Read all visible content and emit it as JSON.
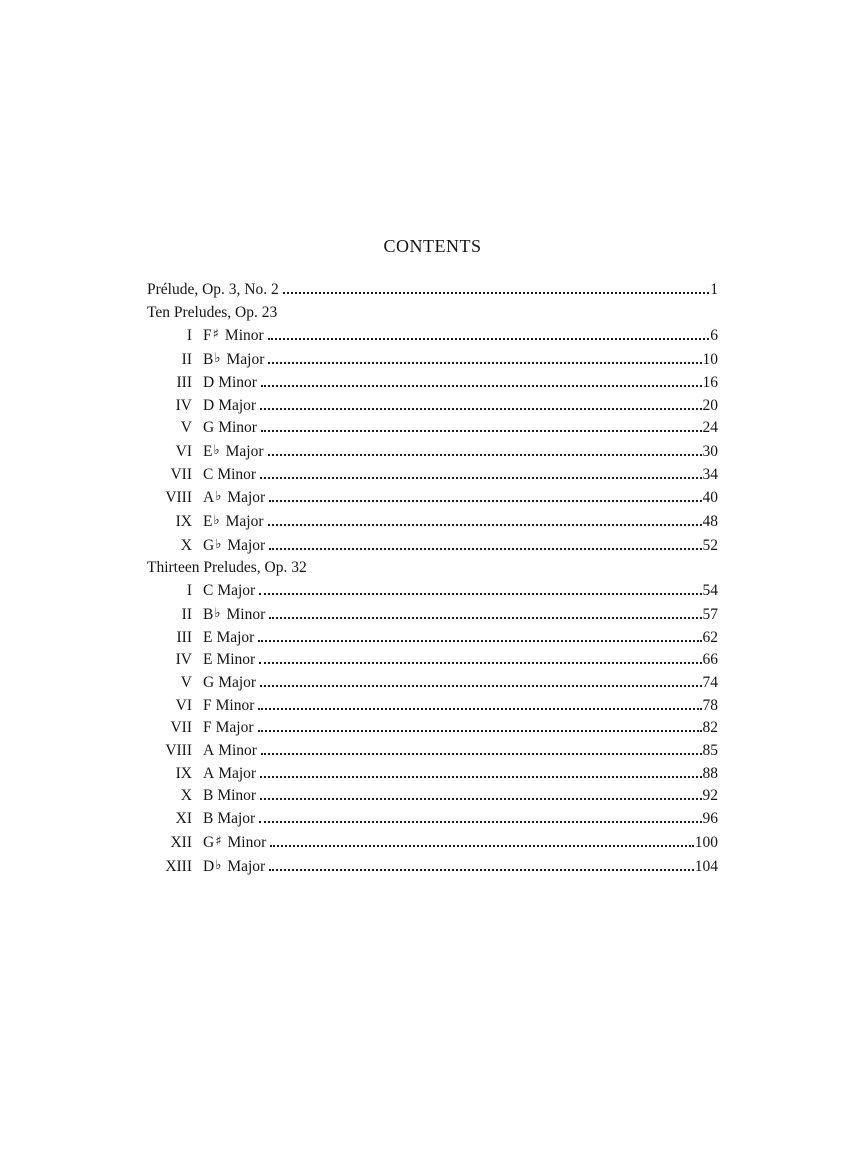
{
  "title": "CONTENTS",
  "entries": [
    {
      "type": "main",
      "label": "Prélude, Op. 3, No. 2",
      "page": "1"
    },
    {
      "type": "section",
      "label": "Ten Preludes, Op. 23"
    },
    {
      "type": "piece",
      "numeral": "I",
      "note": "F",
      "accidental": "♯",
      "quality": "Minor",
      "page": "6"
    },
    {
      "type": "piece",
      "numeral": "II",
      "note": "B",
      "accidental": "♭",
      "quality": "Major",
      "page": "10"
    },
    {
      "type": "piece",
      "numeral": "III",
      "note": "D",
      "accidental": "",
      "quality": "Minor",
      "page": "16"
    },
    {
      "type": "piece",
      "numeral": "IV",
      "note": "D",
      "accidental": "",
      "quality": "Major",
      "page": "20"
    },
    {
      "type": "piece",
      "numeral": "V",
      "note": "G",
      "accidental": "",
      "quality": "Minor",
      "page": "24"
    },
    {
      "type": "piece",
      "numeral": "VI",
      "note": "E",
      "accidental": "♭",
      "quality": "Major",
      "page": "30"
    },
    {
      "type": "piece",
      "numeral": "VII",
      "note": "C",
      "accidental": "",
      "quality": "Minor",
      "page": "34"
    },
    {
      "type": "piece",
      "numeral": "VIII",
      "note": "A",
      "accidental": "♭",
      "quality": "Major",
      "page": "40"
    },
    {
      "type": "piece",
      "numeral": "IX",
      "note": "E",
      "accidental": "♭",
      "quality": "Major",
      "page": "48"
    },
    {
      "type": "piece",
      "numeral": "X",
      "note": "G",
      "accidental": "♭",
      "quality": "Major",
      "page": "52"
    },
    {
      "type": "section",
      "label": "Thirteen Preludes, Op. 32"
    },
    {
      "type": "piece",
      "numeral": "I",
      "note": "C",
      "accidental": "",
      "quality": "Major",
      "page": "54"
    },
    {
      "type": "piece",
      "numeral": "II",
      "note": "B",
      "accidental": "♭",
      "quality": "Minor",
      "page": "57"
    },
    {
      "type": "piece",
      "numeral": "III",
      "note": "E",
      "accidental": "",
      "quality": "Major",
      "page": "62"
    },
    {
      "type": "piece",
      "numeral": "IV",
      "note": "E",
      "accidental": "",
      "quality": "Minor",
      "page": "66"
    },
    {
      "type": "piece",
      "numeral": "V",
      "note": "G",
      "accidental": "",
      "quality": "Major",
      "page": "74"
    },
    {
      "type": "piece",
      "numeral": "VI",
      "note": "F",
      "accidental": "",
      "quality": "Minor",
      "page": "78"
    },
    {
      "type": "piece",
      "numeral": "VII",
      "note": "F",
      "accidental": "",
      "quality": "Major",
      "page": "82"
    },
    {
      "type": "piece",
      "numeral": "VIII",
      "note": "A",
      "accidental": "",
      "quality": "Minor",
      "page": "85"
    },
    {
      "type": "piece",
      "numeral": "IX",
      "note": "A",
      "accidental": "",
      "quality": "Major",
      "page": "88"
    },
    {
      "type": "piece",
      "numeral": "X",
      "note": "B",
      "accidental": "",
      "quality": "Minor",
      "page": "92"
    },
    {
      "type": "piece",
      "numeral": "XI",
      "note": "B",
      "accidental": "",
      "quality": "Major",
      "page": "96"
    },
    {
      "type": "piece",
      "numeral": "XII",
      "note": "G",
      "accidental": "♯",
      "quality": "Minor",
      "page": "100"
    },
    {
      "type": "piece",
      "numeral": "XIII",
      "note": "D",
      "accidental": "♭",
      "quality": "Major",
      "page": "104"
    }
  ]
}
